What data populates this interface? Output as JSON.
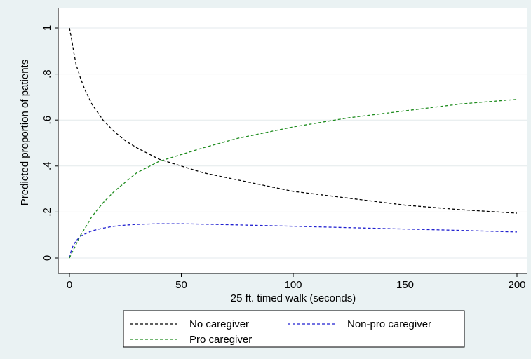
{
  "chart_data": {
    "type": "line",
    "xlabel": "25 ft. timed walk (seconds)",
    "ylabel": "Predicted proportion of patients",
    "xlim": [
      0,
      200
    ],
    "ylim": [
      0,
      1
    ],
    "x_ticks": [
      0,
      50,
      100,
      150,
      200
    ],
    "y_ticks": [
      0,
      0.2,
      0.4,
      0.6,
      0.8,
      1
    ],
    "x_tick_labels": [
      "0",
      "50",
      "100",
      "150",
      "200"
    ],
    "y_tick_labels": [
      "0",
      ".2",
      ".4",
      ".6",
      ".8",
      "1"
    ],
    "grid": "horizontal",
    "legend_position": "bottom",
    "series": [
      {
        "name": "No caregiver",
        "color": "#000000",
        "style": "dashed",
        "x": [
          0,
          1,
          2,
          3,
          5,
          7,
          10,
          15,
          20,
          25,
          30,
          40,
          50,
          60,
          75,
          100,
          125,
          150,
          175,
          200
        ],
        "y": [
          1.0,
          0.95,
          0.89,
          0.84,
          0.78,
          0.73,
          0.67,
          0.6,
          0.55,
          0.51,
          0.48,
          0.43,
          0.4,
          0.37,
          0.34,
          0.29,
          0.26,
          0.23,
          0.21,
          0.195
        ]
      },
      {
        "name": "Non-pro caregiver",
        "color": "#1f1fd0",
        "style": "dashed",
        "x": [
          0,
          1,
          2,
          3,
          5,
          7,
          10,
          15,
          20,
          25,
          30,
          40,
          50,
          60,
          75,
          100,
          125,
          150,
          175,
          200
        ],
        "y": [
          0.0,
          0.04,
          0.06,
          0.075,
          0.095,
          0.105,
          0.118,
          0.13,
          0.138,
          0.143,
          0.146,
          0.149,
          0.149,
          0.147,
          0.144,
          0.138,
          0.132,
          0.126,
          0.12,
          0.113
        ]
      },
      {
        "name": "Pro caregiver",
        "color": "#1e8c1e",
        "style": "dashed",
        "x": [
          0,
          1,
          2,
          3,
          5,
          7,
          10,
          15,
          20,
          25,
          30,
          40,
          50,
          60,
          75,
          100,
          125,
          150,
          175,
          200
        ],
        "y": [
          0.0,
          0.02,
          0.04,
          0.06,
          0.1,
          0.13,
          0.18,
          0.24,
          0.29,
          0.33,
          0.37,
          0.42,
          0.45,
          0.48,
          0.52,
          0.57,
          0.61,
          0.64,
          0.67,
          0.69
        ]
      }
    ]
  }
}
